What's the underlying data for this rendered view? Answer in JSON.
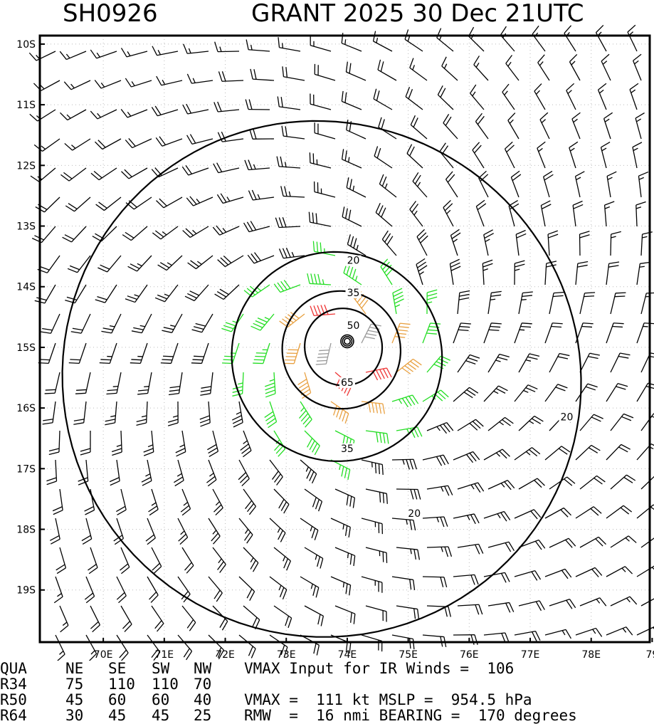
{
  "title": {
    "storm_id": "SH0926",
    "storm_info": "GRANT 2025 30 Dec 21UTC"
  },
  "colors": {
    "barb_default": "#000000",
    "barb_35": "#22dd22",
    "barb_50": "#e8a040",
    "barb_65": "#ee3333",
    "barb_center": "#999999",
    "contour": "#000000"
  },
  "chart_data": {
    "type": "wind-barb-map",
    "lon_range": [
      69,
      79
    ],
    "lat_range": [
      -20,
      -10
    ],
    "x_ticks": [
      "70E",
      "71E",
      "72E",
      "73E",
      "74E",
      "75E",
      "76E",
      "77E",
      "78E",
      "79"
    ],
    "y_ticks": [
      "10S",
      "11S",
      "12S",
      "13S",
      "14S",
      "15S",
      "16S",
      "17S",
      "18S",
      "19S"
    ],
    "center": {
      "lon": 74.0,
      "lat": -14.9
    },
    "rmw_nmi": 16,
    "contour_levels": [
      20,
      35,
      50,
      65
    ],
    "contour_labels": [
      {
        "text": "20",
        "lon": 74.1,
        "lat": -13.6
      },
      {
        "text": "35",
        "lon": 74.1,
        "lat": -14.13
      },
      {
        "text": "50",
        "lon": 74.1,
        "lat": -14.67
      },
      {
        "text": "65",
        "lon": 74.0,
        "lat": -15.61
      },
      {
        "text": "35",
        "lon": 74.0,
        "lat": -16.7
      },
      {
        "text": "20",
        "lon": 75.1,
        "lat": -17.77
      },
      {
        "text": "20",
        "lon": 77.6,
        "lat": -16.18
      }
    ],
    "grid": true
  },
  "table": {
    "header": [
      "QUA",
      "NE",
      "SE",
      "SW",
      "NW"
    ],
    "rows": [
      [
        "R34",
        "75",
        "110",
        "110",
        "70"
      ],
      [
        "R50",
        "45",
        "60",
        "60",
        "40"
      ],
      [
        "R64",
        "30",
        "45",
        "45",
        "25"
      ]
    ],
    "notes": [
      "VMAX Input for IR Winds =  106",
      "",
      "VMAX =  111 kt MSLP =  954.5 hPa",
      "RMW  =  16 nmi BEARING =  170 degrees"
    ]
  }
}
